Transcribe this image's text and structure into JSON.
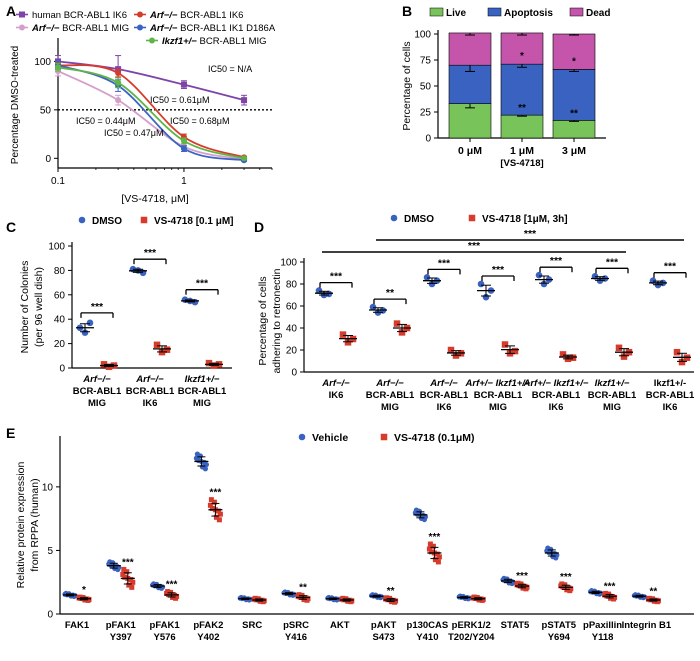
{
  "chart_data": [
    {
      "panel": "A",
      "type": "line",
      "xlabel": "[VS-4718, μM]",
      "ylabel": "Percentage DMSO-treated",
      "xscale": "log",
      "xlim": [
        0.1,
        5
      ],
      "ylim": [
        -10,
        120
      ],
      "xticks": [
        0.1,
        1
      ],
      "yticks": [
        0,
        50,
        100
      ],
      "reference_line": {
        "y": 50,
        "style": "dotted"
      },
      "legend": [
        {
          "text": "human BCR-ABL1 IK6",
          "color": "#7e44a8"
        },
        {
          "text": "Arf−/− BCR-ABL1 IK6",
          "color": "#d63b2c"
        },
        {
          "text": "Arf−/− BCR-ABL1 MIG",
          "color": "#d59ecb"
        },
        {
          "text": "Arf−/− BCR-ABL1 IK1 D186A",
          "color": "#3a64c4"
        },
        {
          "text": "Ikzf1+/− BCR-ABL1 MIG",
          "color": "#5fb545"
        }
      ],
      "series": [
        {
          "color": "#7e44a8",
          "x": [
            0.1,
            0.3,
            1,
            3
          ],
          "y": [
            100,
            92,
            76,
            60
          ],
          "err": [
            6,
            14,
            4,
            5
          ]
        },
        {
          "color": "#d63b2c",
          "x": [
            0.1,
            0.3,
            1,
            3
          ],
          "y": [
            96,
            88,
            22,
            1
          ],
          "err": [
            3,
            4,
            3,
            1
          ]
        },
        {
          "color": "#d59ecb",
          "x": [
            0.1,
            0.3,
            1,
            3
          ],
          "y": [
            90,
            60,
            12,
            -1
          ],
          "err": [
            5,
            5,
            3,
            1
          ]
        },
        {
          "color": "#3a64c4",
          "x": [
            0.1,
            0.3,
            1,
            3
          ],
          "y": [
            96,
            75,
            10,
            -2
          ],
          "err": [
            4,
            6,
            3,
            1
          ]
        },
        {
          "color": "#5fb545",
          "x": [
            0.1,
            0.3,
            1,
            3
          ],
          "y": [
            94,
            78,
            18,
            0
          ],
          "err": [
            4,
            5,
            3,
            1
          ]
        }
      ],
      "annotations": [
        {
          "text": "IC50 = N/A",
          "color": "#3a64c4"
        },
        {
          "text": "IC50 = 0.61μM",
          "color": "#d63b2c"
        },
        {
          "text": "IC50 = 0.44μM",
          "color": "#3a64c4"
        },
        {
          "text": "IC50 = 0.68μM",
          "color": "#5fb545"
        },
        {
          "text": "IC50 = 0.47μM",
          "color": "#d59ecb"
        }
      ]
    },
    {
      "panel": "B",
      "type": "bar",
      "stacked": true,
      "categories": [
        "0 μM",
        "1 μM",
        "3 μM"
      ],
      "xlabel": "[VS-4718]",
      "ylabel": "Percentage of cells",
      "ylim": [
        0,
        100
      ],
      "yticks": [
        0,
        25,
        50,
        75,
        100
      ],
      "legend": [
        {
          "text": "Live",
          "color": "#79c45a"
        },
        {
          "text": "Apoptosis",
          "color": "#3a62c0"
        },
        {
          "text": "Dead",
          "color": "#c455ab"
        }
      ],
      "series": [
        {
          "color": "#79c45a",
          "values": [
            33,
            22,
            17
          ],
          "err": [
            4,
            1,
            1
          ]
        },
        {
          "color": "#3a62c0",
          "values": [
            37,
            49,
            49
          ],
          "err": [
            6,
            3,
            2
          ]
        },
        {
          "color": "#c455ab",
          "values": [
            31,
            30,
            34
          ],
          "err": [
            2,
            2,
            1
          ]
        }
      ],
      "significance": [
        {
          "index": 1,
          "segment": 0,
          "text": "**"
        },
        {
          "index": 1,
          "segment": 1,
          "text": "*"
        },
        {
          "index": 2,
          "segment": 0,
          "text": "**"
        },
        {
          "index": 2,
          "segment": 1,
          "text": "*"
        }
      ]
    },
    {
      "panel": "C",
      "type": "scatter",
      "ylabel_lines": [
        "Number of Colonies",
        "(per 96 well dish)"
      ],
      "ylim": [
        0,
        100
      ],
      "yticks": [
        0,
        20,
        40,
        60,
        80,
        100
      ],
      "legend": [
        {
          "text": "DMSO",
          "color": "#3a62c0"
        },
        {
          "text": "VS-4718  [0.1 μM]",
          "color": "#d63b2c"
        }
      ],
      "groups": [
        {
          "label": [
            "Arf−/−",
            "BCR-ABL1",
            "MIG"
          ],
          "italic_first": true,
          "dmso": [
            33,
            37,
            29
          ],
          "vs": [
            3,
            2,
            1
          ],
          "sig": "***"
        },
        {
          "label": [
            "Arf−/−",
            "BCR-ABL1",
            "IK6"
          ],
          "italic_first": true,
          "dmso": [
            81,
            78,
            80
          ],
          "vs": [
            19,
            15,
            13
          ],
          "sig": "***"
        },
        {
          "label": [
            "Ikzf1+/−",
            "BCR-ABL1",
            "MIG"
          ],
          "italic_first": true,
          "dmso": [
            56,
            54,
            55
          ],
          "vs": [
            4,
            3,
            2
          ],
          "sig": "***"
        }
      ]
    },
    {
      "panel": "D",
      "type": "scatter",
      "ylabel_lines": [
        "Percentage of cells",
        "adhering to retronectin"
      ],
      "ylim": [
        0,
        100
      ],
      "yticks": [
        0,
        20,
        40,
        60,
        80,
        100
      ],
      "legend": [
        {
          "text": "DMSO",
          "color": "#3a62c0"
        },
        {
          "text": "VS-4718 [1μM, 3h]",
          "color": "#d63b2c"
        }
      ],
      "groups": [
        {
          "label": [
            "Arf−/−",
            "IK6"
          ],
          "italic_first": true,
          "dmso": [
            74,
            71,
            70
          ],
          "vs": [
            34,
            30,
            27
          ],
          "sig": "***"
        },
        {
          "label": [
            "Arf−/−",
            "BCR-ABL1",
            "MIG"
          ],
          "italic_first": true,
          "dmso": [
            59,
            56,
            54
          ],
          "vs": [
            44,
            40,
            36
          ],
          "sig": "**"
        },
        {
          "label": [
            "Arf−/−",
            "BCR-ABL1",
            "IK6"
          ],
          "italic_first": true,
          "dmso": [
            86,
            83,
            80
          ],
          "vs": [
            20,
            17,
            15
          ],
          "sig": "***"
        },
        {
          "label": [
            "Arf+/− Ikzf1+/−",
            "BCR-ABL1",
            "MIG"
          ],
          "italic_first": true,
          "dmso": [
            80,
            74,
            68
          ],
          "vs": [
            25,
            19,
            17
          ],
          "sig": "***"
        },
        {
          "label": [
            "Arf+/− Ikzf1+/−",
            "BCR-ABL1",
            "IK6"
          ],
          "italic_first": true,
          "dmso": [
            88,
            84,
            80
          ],
          "vs": [
            16,
            13,
            12
          ],
          "sig": "***"
        },
        {
          "label": [
            "Ikzf1+/−",
            "BCR-ABL1",
            "MIG"
          ],
          "italic_first": true,
          "dmso": [
            87,
            85,
            83
          ],
          "vs": [
            22,
            18,
            14
          ],
          "sig": "***"
        },
        {
          "label": [
            "Ikzf1+/-",
            "BCR-ABL1",
            "IK6"
          ],
          "italic_first": false,
          "dmso": [
            83,
            81,
            79
          ],
          "vs": [
            18,
            13,
            9
          ],
          "sig": "***"
        }
      ],
      "overall_sig": [
        {
          "from": 1,
          "to": 6,
          "text": "***"
        },
        {
          "from": 0,
          "to": 5,
          "text": "***"
        }
      ]
    },
    {
      "panel": "E",
      "type": "scatter",
      "ylabel_lines": [
        "Relative protein expression",
        "from RPPA (human)"
      ],
      "ylim": [
        0,
        14
      ],
      "yticks": [
        0,
        5,
        10
      ],
      "legend": [
        {
          "text": "Vehicle",
          "color": "#3a62c0"
        },
        {
          "text": "VS-4718 (0.1μM)",
          "color": "#d63b2c"
        }
      ],
      "groups": [
        {
          "label": [
            "FAK1"
          ],
          "veh": 1.5,
          "vs": 1.2,
          "vspread": 0.3,
          "sig": "*"
        },
        {
          "label": [
            "pFAK1",
            "Y397"
          ],
          "veh": 3.8,
          "vs": 2.8,
          "vspread": 1.6,
          "sig": "***"
        },
        {
          "label": [
            "pFAK1",
            "Y576"
          ],
          "veh": 2.2,
          "vs": 1.5,
          "vspread": 0.6,
          "sig": "***"
        },
        {
          "label": [
            "pFAK2",
            "Y402"
          ],
          "veh": 12.0,
          "vs": 8.2,
          "vspread": 1.8,
          "sig": "***"
        },
        {
          "label": [
            "SRC"
          ],
          "veh": 1.2,
          "vs": 1.1,
          "vspread": 0.3,
          "sig": ""
        },
        {
          "label": [
            "pSRC",
            "Y416"
          ],
          "veh": 1.6,
          "vs": 1.3,
          "vspread": 0.5,
          "sig": "**"
        },
        {
          "label": [
            "AKT"
          ],
          "veh": 1.2,
          "vs": 1.1,
          "vspread": 0.3,
          "sig": ""
        },
        {
          "label": [
            "pAKT",
            "S473"
          ],
          "veh": 1.4,
          "vs": 1.1,
          "vspread": 0.4,
          "sig": "**"
        },
        {
          "label": [
            "p130CAS",
            "Y410"
          ],
          "veh": 7.8,
          "vs": 4.8,
          "vspread": 1.6,
          "sig": "***"
        },
        {
          "label": [
            "pERK1/2",
            "T202/Y204"
          ],
          "veh": 1.3,
          "vs": 1.2,
          "vspread": 0.3,
          "sig": ""
        },
        {
          "label": [
            "STAT5"
          ],
          "veh": 2.6,
          "vs": 2.2,
          "vspread": 0.5,
          "sig": "***"
        },
        {
          "label": [
            "pSTAT5",
            "Y694"
          ],
          "veh": 4.8,
          "vs": 2.1,
          "vspread": 0.6,
          "sig": "***"
        },
        {
          "label": [
            "pPaxillin",
            "Y118"
          ],
          "veh": 1.7,
          "vs": 1.4,
          "vspread": 0.5,
          "sig": "***"
        },
        {
          "label": [
            "Integrin B1"
          ],
          "veh": 1.4,
          "vs": 1.1,
          "vspread": 0.3,
          "sig": "**"
        }
      ]
    }
  ]
}
